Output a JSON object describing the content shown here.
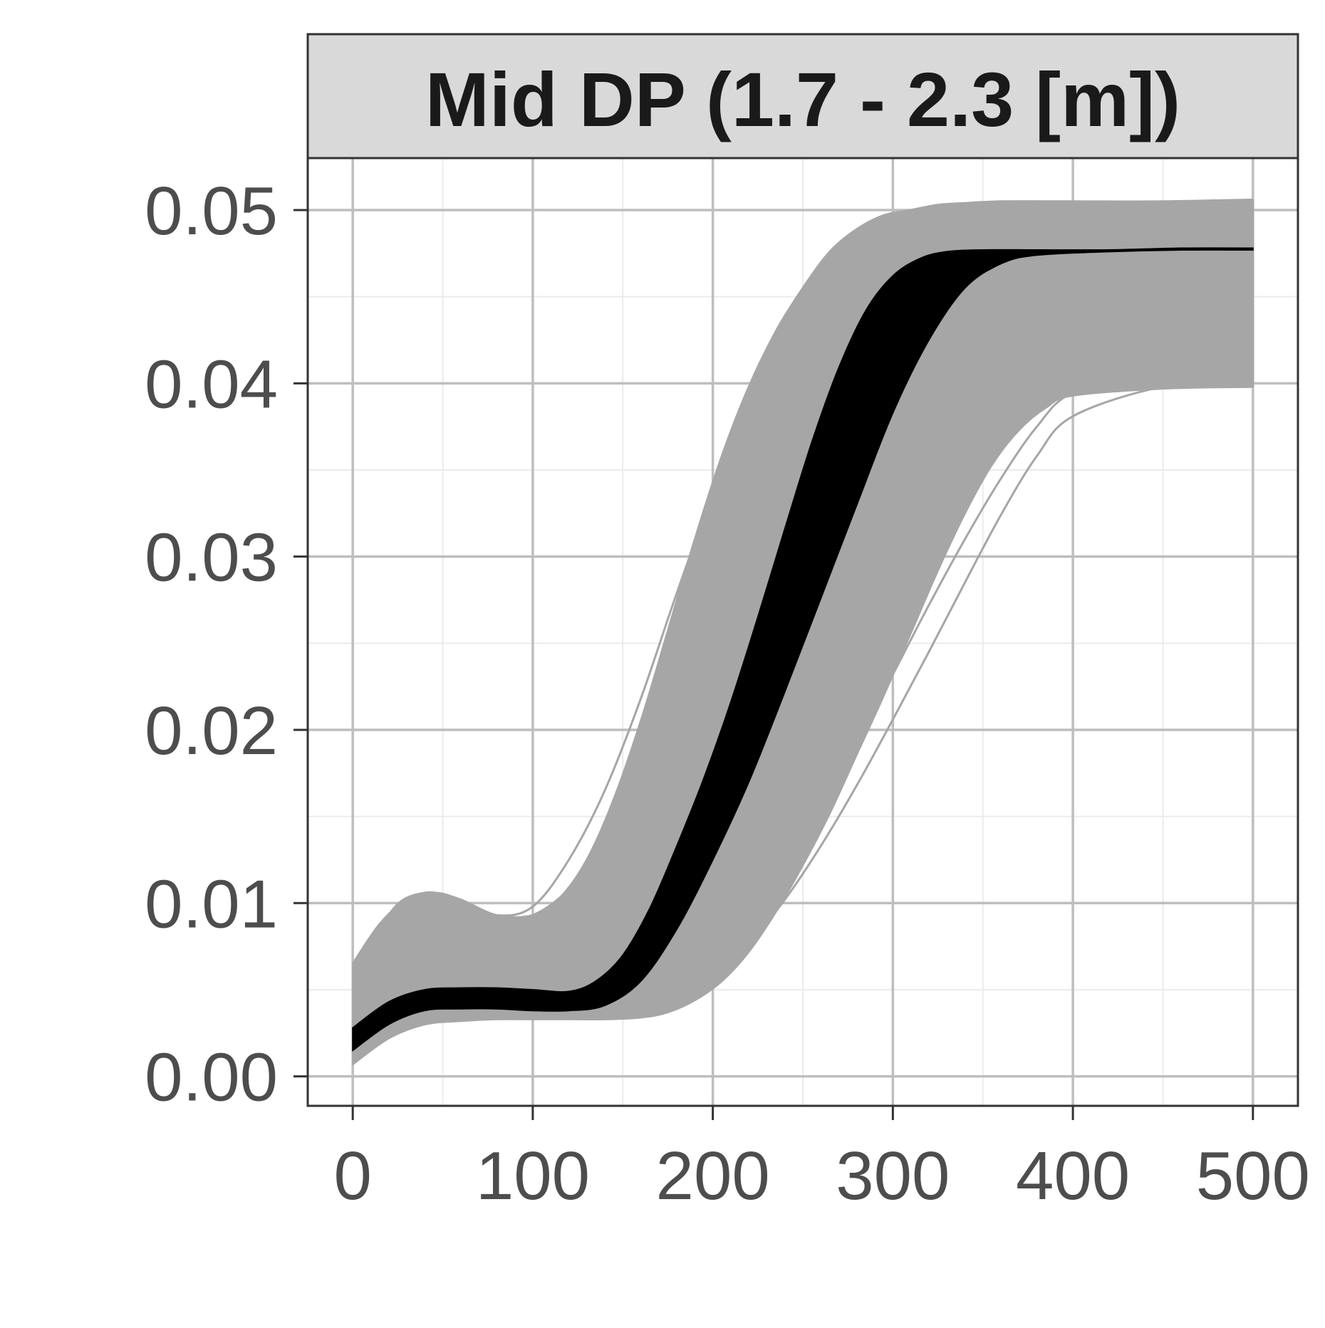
{
  "chart_data": {
    "type": "line",
    "facet_title": "Mid DP (1.7 - 2.3 [m])",
    "xlabel": "",
    "ylabel": "",
    "xlim": [
      -25,
      525
    ],
    "ylim": [
      -0.0017,
      0.053
    ],
    "x_ticks": [
      0,
      100,
      200,
      300,
      400,
      500
    ],
    "x_tick_labels": [
      "0",
      "100",
      "200",
      "300",
      "400",
      "500"
    ],
    "y_ticks": [
      0.0,
      0.01,
      0.02,
      0.03,
      0.04,
      0.05
    ],
    "y_tick_labels": [
      "0.00",
      "0.01",
      "0.02",
      "0.03",
      "0.04",
      "0.05"
    ],
    "grid": true,
    "colors": {
      "grey_band": "#a6a6a6",
      "central_band": "#000000",
      "strip": "#d9d9d9"
    },
    "series": [
      {
        "role": "grey envelope upper",
        "x": [
          0,
          15,
          30,
          45,
          60,
          80,
          100,
          115,
          130,
          145,
          160,
          175,
          190,
          205,
          220,
          235,
          250,
          265,
          280,
          295,
          310,
          325,
          340,
          360,
          400,
          450,
          500
        ],
        "y": [
          0.0065,
          0.0088,
          0.0102,
          0.0106,
          0.0102,
          0.0093,
          0.0093,
          0.0103,
          0.0125,
          0.016,
          0.0205,
          0.0257,
          0.031,
          0.0358,
          0.0398,
          0.043,
          0.0455,
          0.0476,
          0.0489,
          0.0497,
          0.05,
          0.0503,
          0.0504,
          0.0505,
          0.0505,
          0.0505,
          0.0506
        ]
      },
      {
        "role": "grey envelope lower",
        "x": [
          0,
          20,
          40,
          60,
          80,
          100,
          120,
          140,
          160,
          175,
          190,
          205,
          220,
          235,
          250,
          265,
          280,
          295,
          310,
          325,
          340,
          355,
          370,
          385,
          400,
          450,
          500
        ],
        "y": [
          0.0007,
          0.0022,
          0.003,
          0.0032,
          0.0033,
          0.0033,
          0.0033,
          0.0033,
          0.0034,
          0.0037,
          0.0044,
          0.0055,
          0.0072,
          0.0095,
          0.0122,
          0.0152,
          0.0186,
          0.022,
          0.0256,
          0.0292,
          0.0325,
          0.0353,
          0.0373,
          0.0386,
          0.0393,
          0.0397,
          0.0398
        ]
      },
      {
        "role": "grey envelope right edge at x=500",
        "x": [
          500,
          500
        ],
        "y": [
          0.0398,
          0.0506
        ]
      },
      {
        "role": "central band upper",
        "x": [
          0,
          20,
          40,
          60,
          80,
          100,
          120,
          135,
          150,
          165,
          180,
          195,
          210,
          225,
          240,
          255,
          270,
          285,
          300,
          315,
          330,
          350,
          380,
          420,
          460,
          500
        ],
        "y": [
          0.0028,
          0.0043,
          0.005,
          0.0051,
          0.0051,
          0.005,
          0.0049,
          0.0055,
          0.007,
          0.0097,
          0.0133,
          0.0172,
          0.0216,
          0.0265,
          0.0316,
          0.0366,
          0.0409,
          0.0442,
          0.0462,
          0.0472,
          0.0476,
          0.0477,
          0.0477,
          0.0477,
          0.0478,
          0.0478
        ]
      },
      {
        "role": "central band lower",
        "x": [
          0,
          20,
          40,
          60,
          80,
          100,
          120,
          140,
          160,
          180,
          200,
          220,
          240,
          260,
          280,
          300,
          320,
          340,
          360,
          380,
          420,
          460,
          500
        ],
        "y": [
          0.0015,
          0.003,
          0.0038,
          0.0039,
          0.0039,
          0.0038,
          0.0038,
          0.0041,
          0.0055,
          0.0085,
          0.0125,
          0.017,
          0.0222,
          0.0276,
          0.033,
          0.0383,
          0.0425,
          0.0455,
          0.0469,
          0.0474,
          0.0476,
          0.0477,
          0.0477
        ]
      },
      {
        "role": "individual grey curve",
        "x": [
          0,
          20,
          40,
          60,
          80,
          100,
          120,
          140,
          160,
          180,
          200,
          220,
          240,
          260,
          280,
          300,
          320,
          340,
          360,
          380,
          400,
          450,
          500
        ],
        "y": [
          0.004,
          0.0093,
          0.0106,
          0.0101,
          0.0093,
          0.0098,
          0.0125,
          0.0165,
          0.0218,
          0.0279,
          0.0336,
          0.0385,
          0.0425,
          0.0456,
          0.0477,
          0.049,
          0.0497,
          0.05,
          0.0501,
          0.0502,
          0.0502,
          0.0503,
          0.0503
        ]
      },
      {
        "role": "individual grey curve",
        "x": [
          0,
          30,
          60,
          100,
          140,
          180,
          200,
          220,
          240,
          260,
          280,
          300,
          320,
          340,
          360,
          380,
          400,
          450,
          500
        ],
        "y": [
          0.002,
          0.0032,
          0.0034,
          0.0034,
          0.0035,
          0.0045,
          0.0058,
          0.0077,
          0.0102,
          0.0133,
          0.0168,
          0.0206,
          0.0245,
          0.0285,
          0.0324,
          0.0358,
          0.0381,
          0.0398,
          0.0401
        ]
      },
      {
        "role": "individual grey curve",
        "x": [
          0,
          30,
          60,
          100,
          140,
          180,
          200,
          220,
          240,
          260,
          280,
          300,
          320,
          340,
          360,
          380,
          400,
          450,
          500
        ],
        "y": [
          0.003,
          0.0045,
          0.0046,
          0.0045,
          0.0048,
          0.0062,
          0.0078,
          0.0098,
          0.0124,
          0.0156,
          0.0193,
          0.0232,
          0.0272,
          0.031,
          0.0345,
          0.0375,
          0.0395,
          0.0415,
          0.042
        ]
      },
      {
        "role": "individual grey curve",
        "x": [
          0,
          20,
          40,
          60,
          80,
          100,
          120,
          140,
          160,
          180,
          200,
          220,
          240,
          260,
          280,
          300,
          320,
          340,
          360,
          380,
          400,
          450,
          500
        ],
        "y": [
          0.006,
          0.0085,
          0.0097,
          0.0095,
          0.009,
          0.0093,
          0.0108,
          0.0135,
          0.0172,
          0.0218,
          0.0268,
          0.0318,
          0.0364,
          0.0404,
          0.0436,
          0.046,
          0.0475,
          0.0484,
          0.0488,
          0.049,
          0.0491,
          0.0492,
          0.0493
        ]
      },
      {
        "role": "individual grey curve",
        "x": [
          0,
          30,
          60,
          100,
          140,
          180,
          200,
          220,
          240,
          260,
          280,
          300,
          320,
          340,
          360,
          380,
          400,
          450,
          500
        ],
        "y": [
          0.0035,
          0.005,
          0.0052,
          0.0054,
          0.0068,
          0.0098,
          0.0124,
          0.0158,
          0.0198,
          0.024,
          0.0282,
          0.0322,
          0.0356,
          0.0383,
          0.04,
          0.041,
          0.0415,
          0.0418,
          0.0418
        ]
      }
    ]
  }
}
